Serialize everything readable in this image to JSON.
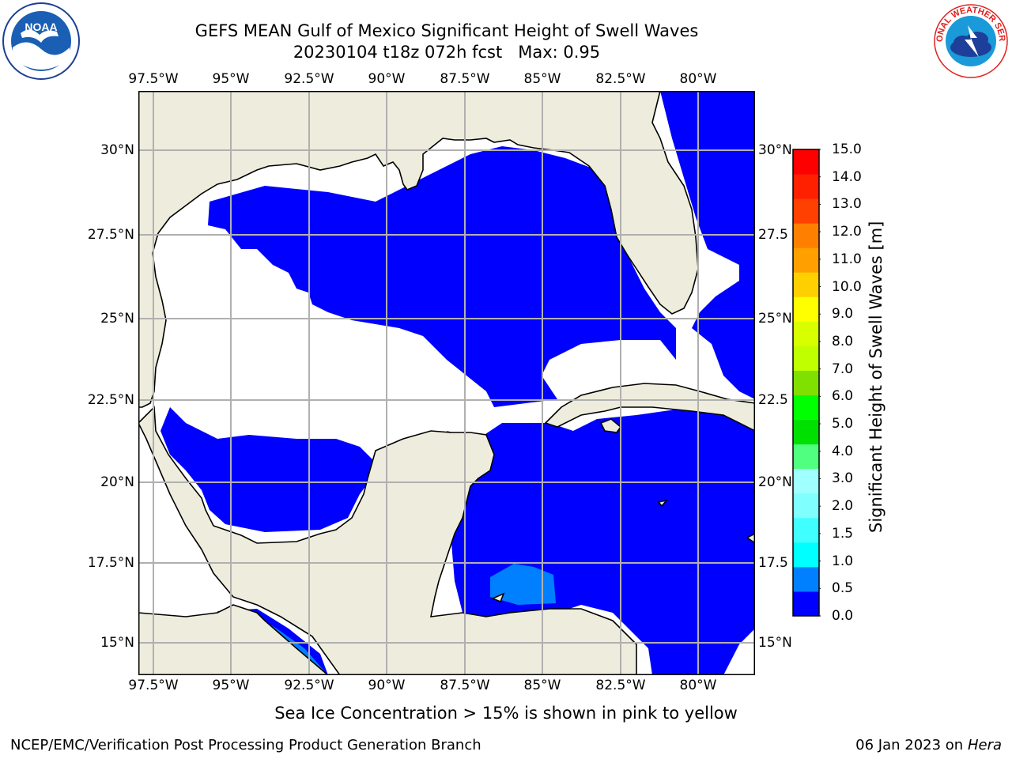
{
  "header": {
    "title_line1": "GEFS MEAN Gulf of Mexico Significant Height of Swell Waves",
    "title_line2": "20230104 t18z 072h fcst   Max: 0.95"
  },
  "logos": {
    "noaa_text": "NOAA",
    "nws_text": "NATIONAL WEATHER SERVICE"
  },
  "map": {
    "lon_labels": [
      "97.5°W",
      "95°W",
      "92.5°W",
      "90°W",
      "87.5°W",
      "85°W",
      "82.5°W",
      "80°W"
    ],
    "lat_labels_left": [
      "30°N",
      "27.5°N",
      "25°N",
      "22.5°N",
      "20°N",
      "17.5°N",
      "15°N"
    ],
    "lat_labels_right": [
      "30°N",
      "27.5",
      "25°N",
      "22.5",
      "20°N",
      "17.5",
      "15°N"
    ],
    "colors": {
      "land": "#eeeddd",
      "swell_low": "#0000ff",
      "swell_mid": "#0080ff",
      "grid": "#b0b0b0"
    }
  },
  "colorbar": {
    "label": "Significant Height of Swell Waves [m]",
    "ticks": [
      "15.0",
      "14.0",
      "13.0",
      "12.0",
      "11.0",
      "10.0",
      "9.0",
      "8.0",
      "7.0",
      "6.0",
      "5.0",
      "4.0",
      "3.0",
      "2.0",
      "1.5",
      "1.0",
      "0.5",
      "0.0"
    ],
    "colors": [
      "#0000ff",
      "#0080ff",
      "#00ffff",
      "#40ffff",
      "#80ffff",
      "#a0ffff",
      "#50ff80",
      "#00e000",
      "#00ff00",
      "#80e000",
      "#c0ff00",
      "#d8ff00",
      "#ffff00",
      "#ffd000",
      "#ffa000",
      "#ff8000",
      "#ff4000",
      "#ff2000",
      "#ff0000"
    ]
  },
  "notes": {
    "sea_ice": "Sea Ice Concentration > 15% is shown in pink to yellow"
  },
  "footer": {
    "left": "NCEP/EMC/Verification Post Processing Product Generation Branch",
    "right_prefix": "06 Jan 2023 on ",
    "right_host": "Hera"
  }
}
